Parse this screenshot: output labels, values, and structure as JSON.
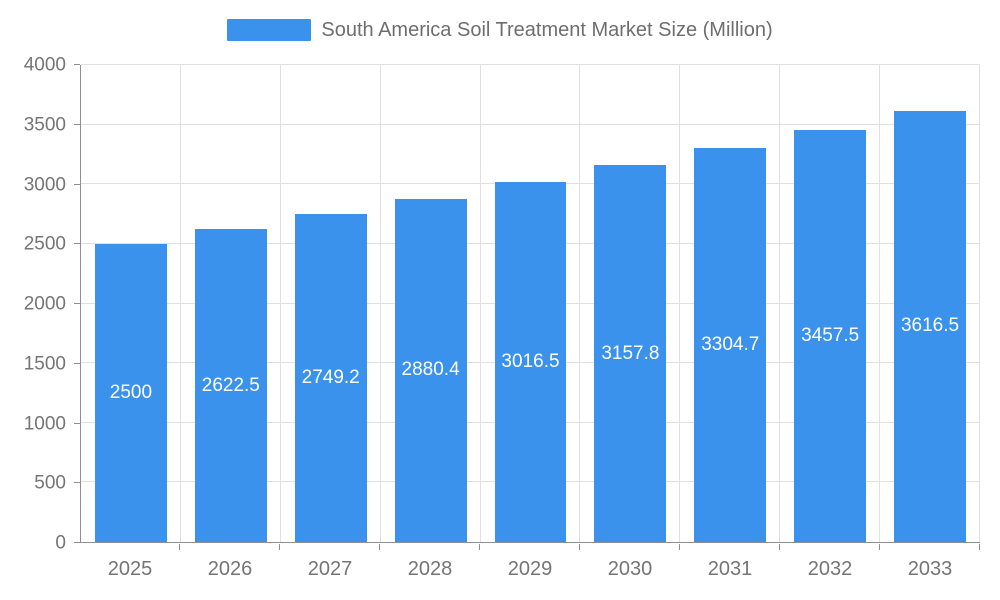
{
  "chart_data": {
    "type": "bar",
    "title": "South America Soil Treatment Market Size (Million)",
    "categories": [
      "2025",
      "2026",
      "2027",
      "2028",
      "2029",
      "2030",
      "2031",
      "2032",
      "2033"
    ],
    "values": [
      2500,
      2622.5,
      2749.2,
      2880.4,
      3016.5,
      3157.8,
      3304.7,
      3457.5,
      3616.5
    ],
    "xlabel": "",
    "ylabel": "",
    "ylim": [
      0,
      4000
    ],
    "yticks": [
      0,
      500,
      1000,
      1500,
      2000,
      2500,
      3000,
      3500,
      4000
    ],
    "grid": true,
    "legend_position": "top",
    "value_labels": "inside-center",
    "colors": {
      "bar": "#3B92EC",
      "value_label": "#FFFFFF",
      "title_text": "#6E6E6E",
      "axis_text": "#757575",
      "gridline": "#E0E0E0",
      "axis_line": "#8F8F8F"
    }
  }
}
